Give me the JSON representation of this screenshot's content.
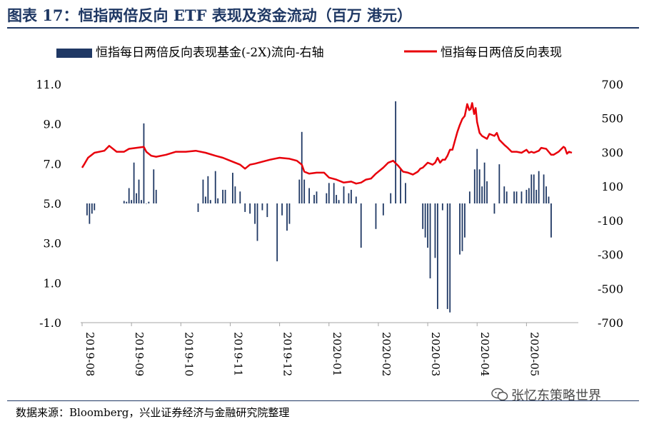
{
  "title": "图表 17：恒指两倍反向 ETF 表现及资金流动（百万 港元）",
  "source": "数据来源：Bloomberg，兴业证券经济与金融研究院整理",
  "watermark": "张忆东策略世界",
  "colors": {
    "bar": "#1f3864",
    "line": "#e8000b",
    "title": "#1f3864"
  },
  "chart_data": {
    "type": "bar+line",
    "legend": {
      "position": "top",
      "entries": [
        "恒指每日两倍反向表现基金(-2X)流向-右轴",
        "恒指每日两倍反向表现"
      ]
    },
    "left_axis": {
      "min": -1.0,
      "max": 11.0,
      "ticks": [
        "11.0",
        "9.0",
        "7.0",
        "5.0",
        "3.0",
        "1.0",
        "-1.0"
      ],
      "values": [
        11,
        9,
        7,
        5,
        3,
        1,
        -1
      ]
    },
    "right_axis": {
      "min": -700,
      "max": 700,
      "ticks": [
        "700",
        "500",
        "300",
        "100",
        "-100",
        "-300",
        "-500",
        "-700"
      ],
      "values": [
        700,
        500,
        300,
        100,
        -100,
        -300,
        -500,
        -700
      ]
    },
    "x_ticks": [
      "2019-08",
      "2019-09",
      "2019-10",
      "2019-11",
      "2019-12",
      "2020-01",
      "2020-02",
      "2020-03",
      "2020-04",
      "2020-05"
    ],
    "x_range": [
      0,
      10.05
    ],
    "series": [
      {
        "name": "恒指每日两倍反向表现",
        "type": "line",
        "axis": "left",
        "points": [
          [
            0.0,
            6.8
          ],
          [
            0.05,
            7.0
          ],
          [
            0.12,
            7.3
          ],
          [
            0.25,
            7.55
          ],
          [
            0.45,
            7.65
          ],
          [
            0.55,
            7.9
          ],
          [
            0.7,
            7.6
          ],
          [
            0.85,
            7.6
          ],
          [
            0.95,
            7.75
          ],
          [
            1.1,
            7.8
          ],
          [
            1.25,
            7.85
          ],
          [
            1.3,
            7.6
          ],
          [
            1.4,
            7.4
          ],
          [
            1.5,
            7.35
          ],
          [
            1.7,
            7.45
          ],
          [
            1.9,
            7.6
          ],
          [
            2.1,
            7.6
          ],
          [
            2.3,
            7.65
          ],
          [
            2.5,
            7.55
          ],
          [
            2.7,
            7.4
          ],
          [
            2.85,
            7.3
          ],
          [
            3.0,
            7.15
          ],
          [
            3.1,
            7.05
          ],
          [
            3.2,
            6.95
          ],
          [
            3.3,
            6.75
          ],
          [
            3.4,
            6.95
          ],
          [
            3.5,
            7.0
          ],
          [
            3.65,
            7.1
          ],
          [
            3.8,
            7.2
          ],
          [
            4.0,
            7.3
          ],
          [
            4.2,
            7.25
          ],
          [
            4.35,
            7.15
          ],
          [
            4.45,
            6.95
          ],
          [
            4.5,
            6.6
          ],
          [
            4.6,
            6.5
          ],
          [
            4.75,
            6.55
          ],
          [
            4.9,
            6.55
          ],
          [
            5.0,
            6.3
          ],
          [
            5.15,
            6.2
          ],
          [
            5.3,
            6.05
          ],
          [
            5.45,
            6.1
          ],
          [
            5.55,
            6.0
          ],
          [
            5.65,
            6.05
          ],
          [
            5.75,
            6.2
          ],
          [
            5.85,
            6.25
          ],
          [
            5.95,
            6.5
          ],
          [
            6.1,
            6.8
          ],
          [
            6.2,
            7.05
          ],
          [
            6.3,
            7.15
          ],
          [
            6.4,
            6.9
          ],
          [
            6.5,
            6.6
          ],
          [
            6.6,
            6.55
          ],
          [
            6.7,
            6.45
          ],
          [
            6.8,
            6.6
          ],
          [
            6.85,
            6.75
          ],
          [
            6.9,
            6.8
          ],
          [
            7.0,
            7.05
          ],
          [
            7.1,
            6.95
          ],
          [
            7.15,
            7.05
          ],
          [
            7.2,
            7.3
          ],
          [
            7.25,
            7.05
          ],
          [
            7.3,
            7.2
          ],
          [
            7.35,
            7.2
          ],
          [
            7.4,
            7.4
          ],
          [
            7.45,
            7.7
          ],
          [
            7.5,
            7.7
          ],
          [
            7.55,
            8.15
          ],
          [
            7.6,
            8.6
          ],
          [
            7.65,
            8.95
          ],
          [
            7.7,
            9.25
          ],
          [
            7.75,
            9.4
          ],
          [
            7.8,
            10.0
          ],
          [
            7.84,
            9.7
          ],
          [
            7.87,
            9.75
          ],
          [
            7.9,
            10.05
          ],
          [
            7.94,
            9.5
          ],
          [
            7.97,
            9.8
          ],
          [
            8.0,
            9.1
          ],
          [
            8.05,
            8.55
          ],
          [
            8.1,
            8.4
          ],
          [
            8.2,
            8.25
          ],
          [
            8.25,
            8.5
          ],
          [
            8.35,
            8.4
          ],
          [
            8.4,
            8.55
          ],
          [
            8.45,
            8.2
          ],
          [
            8.55,
            7.95
          ],
          [
            8.62,
            7.8
          ],
          [
            8.7,
            7.6
          ],
          [
            8.8,
            7.6
          ],
          [
            8.9,
            7.55
          ],
          [
            9.0,
            7.7
          ],
          [
            9.05,
            7.55
          ],
          [
            9.1,
            7.6
          ],
          [
            9.15,
            7.55
          ],
          [
            9.25,
            7.65
          ],
          [
            9.3,
            7.8
          ],
          [
            9.4,
            7.75
          ],
          [
            9.5,
            7.45
          ],
          [
            9.55,
            7.45
          ],
          [
            9.65,
            7.6
          ],
          [
            9.75,
            7.85
          ],
          [
            9.78,
            7.8
          ],
          [
            9.82,
            7.5
          ],
          [
            9.86,
            7.6
          ],
          [
            9.92,
            7.55
          ]
        ]
      },
      {
        "name": "恒指每日两倍反向表现基金(-2X)流向-右轴",
        "type": "bar",
        "axis": "right",
        "points": [
          [
            0.1,
            -70
          ],
          [
            0.15,
            -120
          ],
          [
            0.2,
            -60
          ],
          [
            0.25,
            -40
          ],
          [
            0.85,
            15
          ],
          [
            0.9,
            10
          ],
          [
            0.95,
            90
          ],
          [
            1.0,
            20
          ],
          [
            1.05,
            240
          ],
          [
            1.1,
            60
          ],
          [
            1.15,
            140
          ],
          [
            1.2,
            20
          ],
          [
            1.25,
            470
          ],
          [
            1.3,
            0
          ],
          [
            1.35,
            10
          ],
          [
            1.45,
            200
          ],
          [
            1.5,
            80
          ],
          [
            2.35,
            -50
          ],
          [
            2.45,
            140
          ],
          [
            2.5,
            40
          ],
          [
            2.55,
            160
          ],
          [
            2.6,
            20
          ],
          [
            2.7,
            190
          ],
          [
            2.75,
            30
          ],
          [
            2.85,
            80
          ],
          [
            2.9,
            80
          ],
          [
            3.05,
            180
          ],
          [
            3.1,
            100
          ],
          [
            3.2,
            70
          ],
          [
            3.3,
            -50
          ],
          [
            3.4,
            -60
          ],
          [
            3.5,
            -120
          ],
          [
            3.55,
            -220
          ],
          [
            3.65,
            -40
          ],
          [
            3.75,
            -80
          ],
          [
            3.95,
            -340
          ],
          [
            4.05,
            -70
          ],
          [
            4.15,
            -160
          ],
          [
            4.2,
            -120
          ],
          [
            4.4,
            140
          ],
          [
            4.45,
            420
          ],
          [
            4.5,
            140
          ],
          [
            4.6,
            90
          ],
          [
            4.7,
            50
          ],
          [
            4.75,
            70
          ],
          [
            4.95,
            60
          ],
          [
            5.0,
            120
          ],
          [
            5.1,
            120
          ],
          [
            5.15,
            50
          ],
          [
            5.2,
            20
          ],
          [
            5.3,
            100
          ],
          [
            5.4,
            60
          ],
          [
            5.45,
            80
          ],
          [
            5.55,
            40
          ],
          [
            5.65,
            -260
          ],
          [
            5.95,
            -150
          ],
          [
            6.1,
            -70
          ],
          [
            6.25,
            60
          ],
          [
            6.35,
            600
          ],
          [
            6.45,
            200
          ],
          [
            6.55,
            120
          ],
          [
            6.9,
            -150
          ],
          [
            6.95,
            -200
          ],
          [
            7.0,
            -260
          ],
          [
            7.05,
            -440
          ],
          [
            7.15,
            -320
          ],
          [
            7.2,
            -620
          ],
          [
            7.3,
            -40
          ],
          [
            7.4,
            -620
          ],
          [
            7.45,
            -640
          ],
          [
            7.65,
            -300
          ],
          [
            7.7,
            -280
          ],
          [
            7.75,
            -200
          ],
          [
            7.85,
            70
          ],
          [
            7.95,
            200
          ],
          [
            8.0,
            320
          ],
          [
            8.05,
            200
          ],
          [
            8.1,
            100
          ],
          [
            8.15,
            240
          ],
          [
            8.2,
            130
          ],
          [
            8.35,
            -60
          ],
          [
            8.45,
            230
          ],
          [
            8.55,
            100
          ],
          [
            8.6,
            70
          ],
          [
            8.75,
            70
          ],
          [
            8.8,
            70
          ],
          [
            8.9,
            70
          ],
          [
            9.0,
            80
          ],
          [
            9.05,
            90
          ],
          [
            9.1,
            170
          ],
          [
            9.15,
            170
          ],
          [
            9.2,
            80
          ],
          [
            9.25,
            190
          ],
          [
            9.35,
            170
          ],
          [
            9.4,
            100
          ],
          [
            9.45,
            40
          ],
          [
            9.5,
            -200
          ]
        ]
      }
    ]
  }
}
